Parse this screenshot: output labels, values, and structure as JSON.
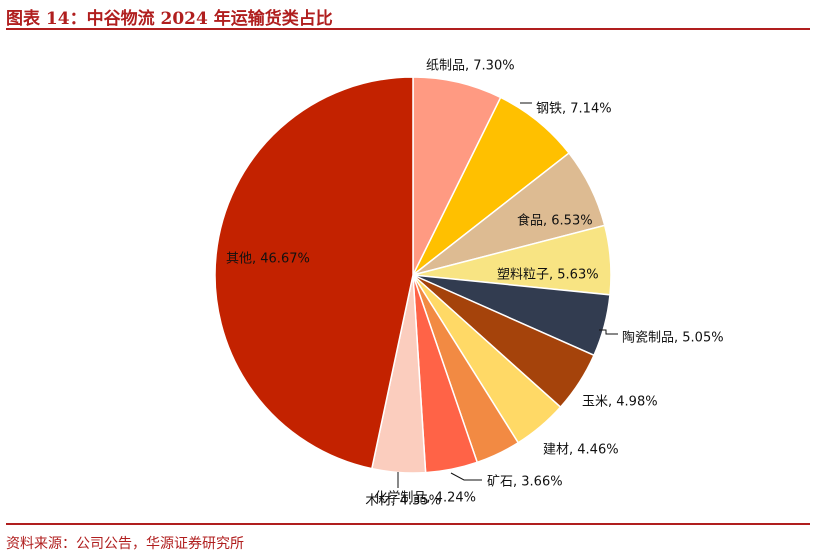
{
  "figure": {
    "title": "图表 14：中谷物流 2024 年运输货类占比",
    "source": "资料来源：公司公告，华源证券研究所"
  },
  "colors": {
    "accent": "#b01e1e"
  },
  "chart_data": {
    "type": "pie",
    "unit": "%",
    "start": "12 o'clock",
    "direction": "clockwise",
    "legend": "none",
    "slices": [
      {
        "name": "纸制品",
        "value": 7.3,
        "label": "纸制品, 7.30%",
        "color": "#FF9A82"
      },
      {
        "name": "钢铁",
        "value": 7.14,
        "label": "钢铁, 7.14%",
        "color": "#FFC000"
      },
      {
        "name": "食品",
        "value": 6.53,
        "label": "食品, 6.53%",
        "color": "#DDBB92"
      },
      {
        "name": "塑料粒子",
        "value": 5.63,
        "label": "塑料粒子, 5.63%",
        "color": "#F8E483"
      },
      {
        "name": "陶瓷制品",
        "value": 5.05,
        "label": "陶瓷制品, 5.05%",
        "color": "#323C50"
      },
      {
        "name": "玉米",
        "value": 4.98,
        "label": "玉米, 4.98%",
        "color": "#A5430B"
      },
      {
        "name": "建材",
        "value": 4.46,
        "label": "建材, 4.46%",
        "color": "#FFD966"
      },
      {
        "name": "矿石",
        "value": 3.66,
        "label": "矿石, 3.66%",
        "color": "#F28A43"
      },
      {
        "name": "化学制品",
        "value": 4.24,
        "label": "化学制品, 4.24%",
        "color": "#FF6347"
      },
      {
        "name": "木材",
        "value": 4.35,
        "label": "木材, 4.35%",
        "color": "#FBCDBE"
      },
      {
        "name": "其他",
        "value": 46.67,
        "label": "其他, 46.67%",
        "color": "#C32200"
      }
    ]
  }
}
